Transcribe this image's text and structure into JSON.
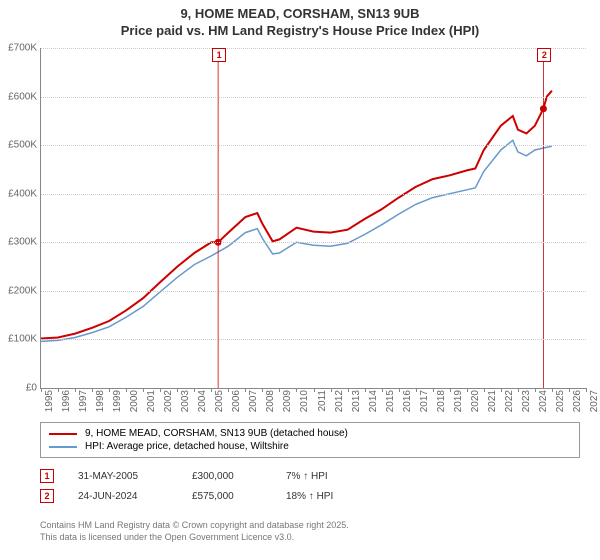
{
  "title_line1": "9, HOME MEAD, CORSHAM, SN13 9UB",
  "title_line2": "Price paid vs. HM Land Registry's House Price Index (HPI)",
  "chart": {
    "type": "line",
    "xlim": [
      1995,
      2027
    ],
    "ylim": [
      0,
      700000
    ],
    "ytick_step": 100000,
    "yticks": [
      "£0",
      "£100K",
      "£200K",
      "£300K",
      "£400K",
      "£500K",
      "£600K",
      "£700K"
    ],
    "xticks": [
      1995,
      1996,
      1997,
      1998,
      1999,
      2000,
      2001,
      2002,
      2003,
      2004,
      2005,
      2006,
      2007,
      2008,
      2009,
      2010,
      2011,
      2012,
      2013,
      2014,
      2015,
      2016,
      2017,
      2018,
      2019,
      2020,
      2021,
      2022,
      2023,
      2024,
      2025,
      2026,
      2027
    ],
    "grid_color": "#cccccc",
    "background_color": "#ffffff",
    "series": {
      "property": {
        "label": "9, HOME MEAD, CORSHAM, SN13 9UB (detached house)",
        "color": "#cc0000",
        "width": 2,
        "data": [
          [
            1995,
            102000
          ],
          [
            1996,
            104000
          ],
          [
            1997,
            112000
          ],
          [
            1998,
            124000
          ],
          [
            1999,
            138000
          ],
          [
            2000,
            160000
          ],
          [
            2001,
            185000
          ],
          [
            2002,
            218000
          ],
          [
            2003,
            250000
          ],
          [
            2004,
            278000
          ],
          [
            2005,
            300000
          ],
          [
            2005.4,
            300000
          ],
          [
            2006,
            320000
          ],
          [
            2007,
            352000
          ],
          [
            2007.7,
            360000
          ],
          [
            2008,
            338000
          ],
          [
            2008.6,
            302000
          ],
          [
            2009,
            306000
          ],
          [
            2010,
            330000
          ],
          [
            2011,
            322000
          ],
          [
            2012,
            320000
          ],
          [
            2013,
            326000
          ],
          [
            2014,
            348000
          ],
          [
            2015,
            368000
          ],
          [
            2016,
            392000
          ],
          [
            2017,
            414000
          ],
          [
            2018,
            430000
          ],
          [
            2019,
            438000
          ],
          [
            2020,
            448000
          ],
          [
            2020.5,
            452000
          ],
          [
            2021,
            490000
          ],
          [
            2022,
            540000
          ],
          [
            2022.7,
            560000
          ],
          [
            2023,
            532000
          ],
          [
            2023.5,
            524000
          ],
          [
            2024,
            540000
          ],
          [
            2024.5,
            575000
          ],
          [
            2024.7,
            600000
          ],
          [
            2025,
            612000
          ]
        ]
      },
      "hpi": {
        "label": "HPI: Average price, detached house, Wiltshire",
        "color": "#6699cc",
        "width": 1.5,
        "data": [
          [
            1995,
            96000
          ],
          [
            1996,
            98000
          ],
          [
            1997,
            104000
          ],
          [
            1998,
            114000
          ],
          [
            1999,
            126000
          ],
          [
            2000,
            146000
          ],
          [
            2001,
            168000
          ],
          [
            2002,
            198000
          ],
          [
            2003,
            228000
          ],
          [
            2004,
            254000
          ],
          [
            2005,
            272000
          ],
          [
            2006,
            292000
          ],
          [
            2007,
            320000
          ],
          [
            2007.7,
            328000
          ],
          [
            2008,
            308000
          ],
          [
            2008.6,
            276000
          ],
          [
            2009,
            278000
          ],
          [
            2010,
            300000
          ],
          [
            2011,
            294000
          ],
          [
            2012,
            292000
          ],
          [
            2013,
            298000
          ],
          [
            2014,
            316000
          ],
          [
            2015,
            336000
          ],
          [
            2016,
            358000
          ],
          [
            2017,
            378000
          ],
          [
            2018,
            392000
          ],
          [
            2019,
            400000
          ],
          [
            2020,
            408000
          ],
          [
            2020.5,
            412000
          ],
          [
            2021,
            446000
          ],
          [
            2022,
            490000
          ],
          [
            2022.7,
            510000
          ],
          [
            2023,
            486000
          ],
          [
            2023.5,
            478000
          ],
          [
            2024,
            490000
          ],
          [
            2025,
            498000
          ]
        ]
      }
    },
    "markers": [
      {
        "id": "1",
        "x": 2005.4,
        "y_top": 55,
        "dot_x": 2005.4,
        "dot_y": 300000
      },
      {
        "id": "2",
        "x": 2024.5,
        "y_top": 55,
        "dot_x": 2024.5,
        "dot_y": 575000
      }
    ]
  },
  "annotations": [
    {
      "id": "1",
      "date": "31-MAY-2005",
      "price": "£300,000",
      "pct": "7% ↑ HPI"
    },
    {
      "id": "2",
      "date": "24-JUN-2024",
      "price": "£575,000",
      "pct": "18% ↑ HPI"
    }
  ],
  "footer_line1": "Contains HM Land Registry data © Crown copyright and database right 2025.",
  "footer_line2": "This data is licensed under the Open Government Licence v3.0."
}
